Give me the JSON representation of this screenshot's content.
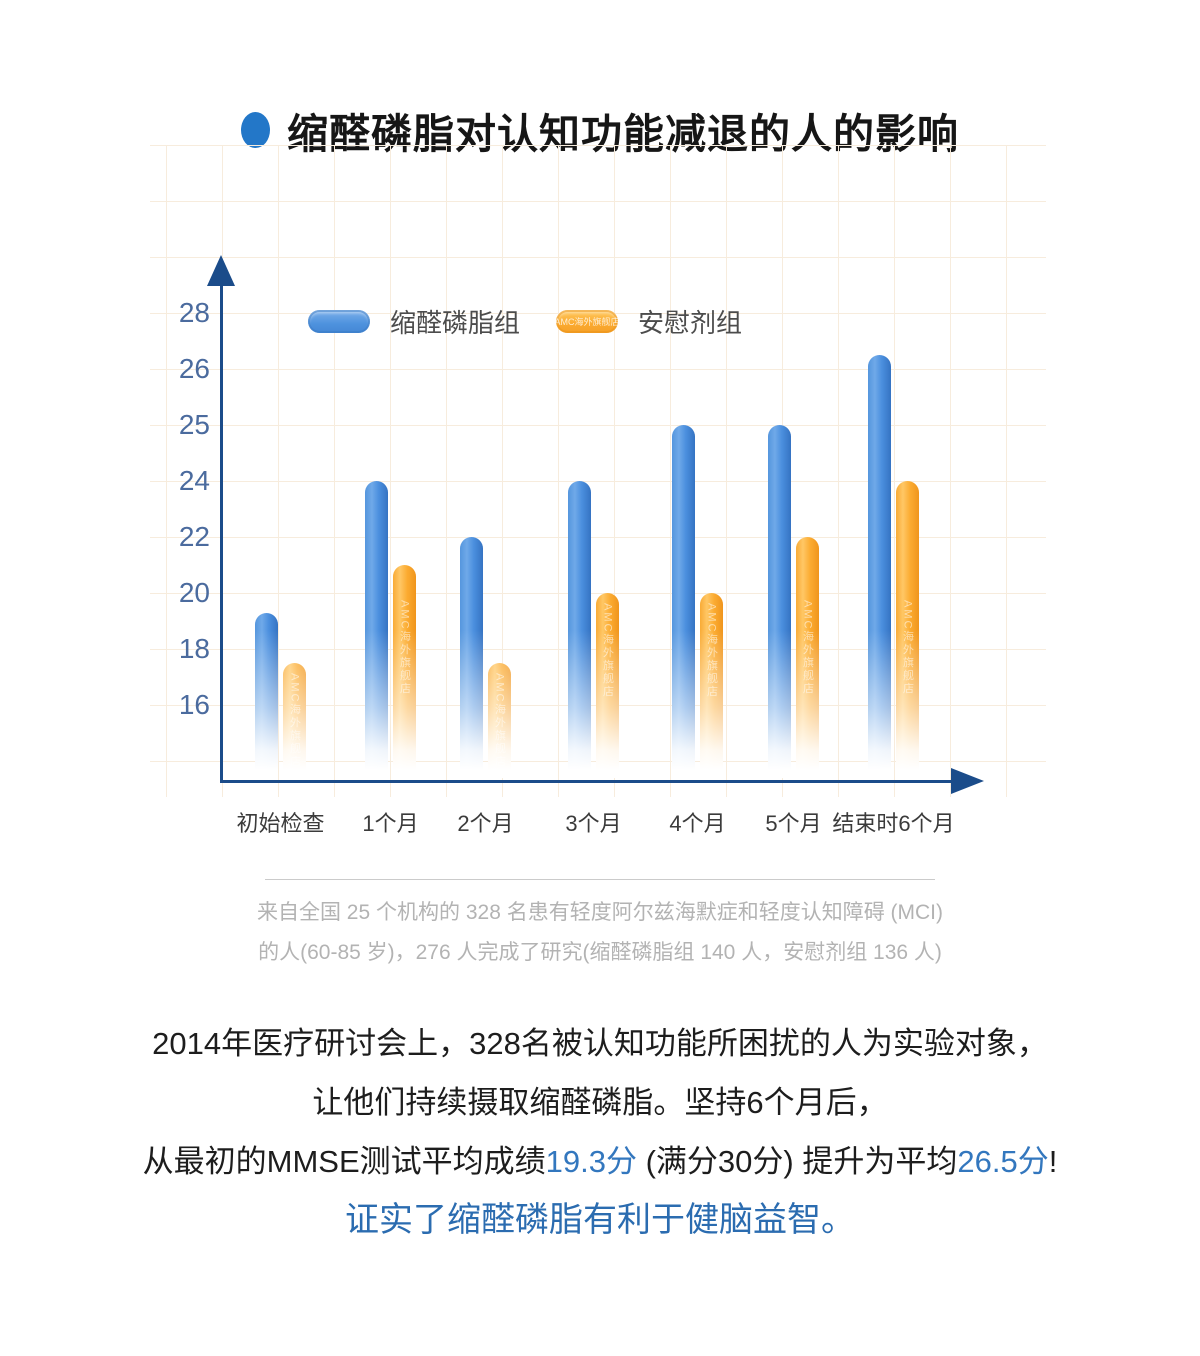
{
  "title": {
    "text": "缩醛磷脂对认知功能减退的人的影响"
  },
  "watermark_text": "AMC海外旗舰店",
  "chart_data": {
    "type": "bar",
    "title": "缩醛磷脂对认知功能减退的人的影响",
    "categories": [
      "初始检查",
      "1个月",
      "2个月",
      "3个月",
      "4个月",
      "5个月",
      "结束时6个月"
    ],
    "series": [
      {
        "name": "缩醛磷脂组",
        "color": "#4A8FDC",
        "values": [
          19.3,
          24,
          22,
          24,
          25,
          25,
          26.5
        ]
      },
      {
        "name": "安慰剂组",
        "color": "#FBAC35",
        "values": [
          17.5,
          21,
          17.5,
          20,
          20,
          22,
          24
        ]
      }
    ],
    "y_axis": {
      "tick_labels_top_to_bottom": [
        28,
        26,
        25,
        24,
        22,
        20,
        18,
        16
      ],
      "note": "ticks evenly spaced on a non-linear MMSE score scale"
    },
    "xlabel": "",
    "ylabel": "",
    "legend_position": "top-left",
    "grid": true
  },
  "colors": {
    "accent_blue": "#2377C8",
    "bar_blue": "#4A8FDC",
    "bar_orange": "#FBAC35",
    "axis_navy": "#1B4C8A",
    "highlight_text": "#3377BE",
    "conclusion_text": "#2B6CB0"
  },
  "footnote": {
    "line1": "来自全国 25 个机构的 328 名患有轻度阿尔兹海默症和轻度认知障碍 (MCI)",
    "line2": "的人(60-85 岁)，276 人完成了研究(缩醛磷脂组 140 人，安慰剂组 136 人)"
  },
  "body": {
    "line1": "2014年医疗研讨会上，328名被认知功能所困扰的人为实验对象，",
    "line2": "让他们持续摄取缩醛磷脂。坚持6个月后，",
    "line3": {
      "pre": "从最初的MMSE测试平均成绩",
      "highlight1": "19.3分",
      "mid": " (满分30分) 提升为平均",
      "highlight2": "26.5分",
      "post": "!"
    },
    "line4": "证实了缩醛磷脂有利于健脑益智。"
  }
}
